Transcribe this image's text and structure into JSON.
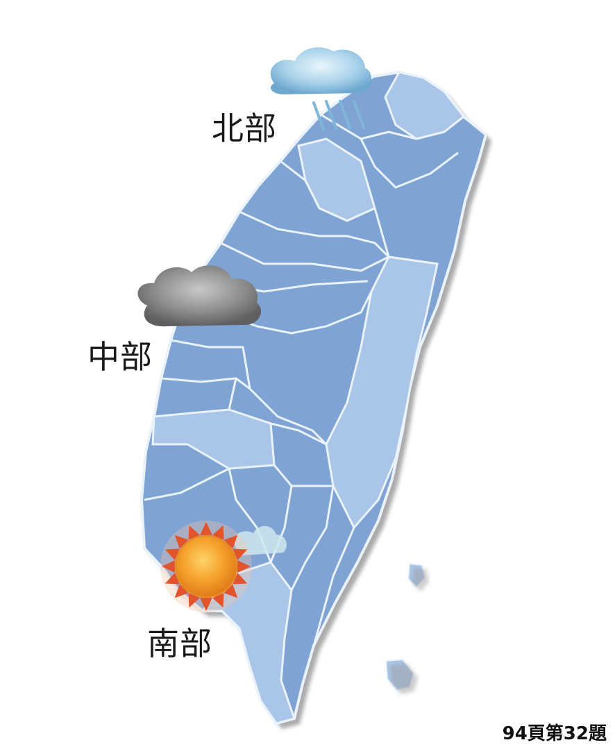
{
  "map": {
    "regions": [
      {
        "id": "north",
        "label": "北部",
        "weather_icon": "rain-cloud-icon"
      },
      {
        "id": "central",
        "label": "中部",
        "weather_icon": "dark-cloud-icon"
      },
      {
        "id": "south",
        "label": "南部",
        "weather_icon": "sun-icon"
      }
    ],
    "colors": {
      "land_dark": "#7fa4d4",
      "land_light": "#a9c6e8",
      "border": "#eaf2fb",
      "shadow": "#9a9a9a",
      "rain_cloud": "#8fc3e0",
      "dark_cloud": "#8a8a8a",
      "sun_core": "#f29a22",
      "sun_rays": "#e2542b"
    }
  },
  "caption": "94頁第32題"
}
